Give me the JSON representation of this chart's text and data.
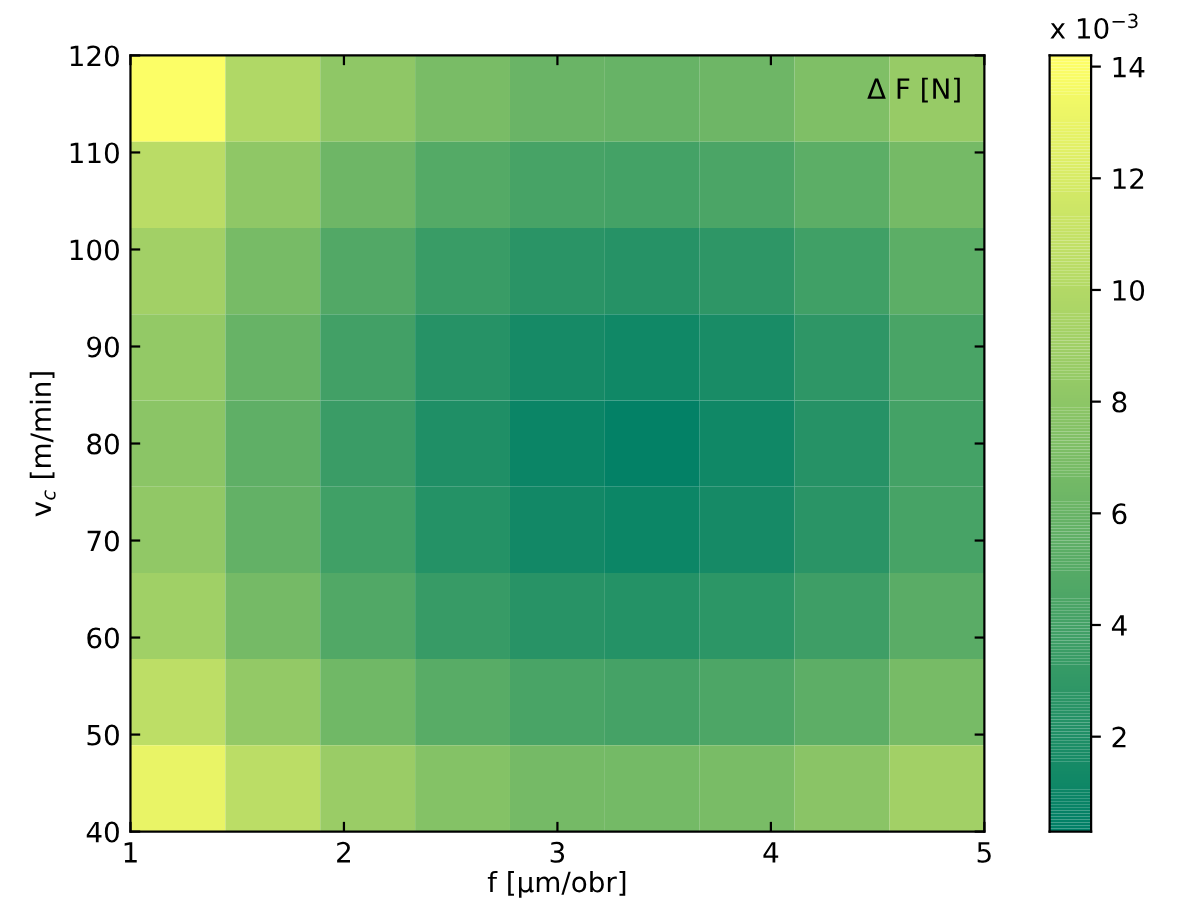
{
  "chart_data": {
    "type": "heatmap",
    "xlabel": "f [μm/obr]",
    "ylabel": "v$_{c}$ [m/min]",
    "clabel": "x 10$^{−3}$",
    "legend_title": "Δ F [N]",
    "xlim": [
      1,
      5
    ],
    "xticks": [
      1,
      2,
      3,
      4,
      5
    ],
    "ylim": [
      40,
      120
    ],
    "yticks": [
      40,
      50,
      60,
      70,
      80,
      90,
      100,
      110,
      120
    ],
    "cells": [
      [
        14.0,
        9.9,
        8.1,
        6.9,
        6.1,
        5.9,
        6.3,
        7.2,
        8.5
      ],
      [
        10.4,
        8.1,
        6.3,
        4.9,
        4.2,
        4.0,
        4.4,
        5.3,
        6.7
      ],
      [
        9.1,
        6.8,
        4.8,
        3.4,
        2.6,
        2.4,
        2.8,
        3.8,
        5.3
      ],
      [
        8.3,
        5.9,
        3.9,
        2.4,
        1.5,
        1.2,
        1.7,
        2.8,
        4.3
      ],
      [
        7.9,
        5.5,
        3.5,
        2.0,
        0.9,
        0.5,
        1.2,
        2.4,
        4.0
      ],
      [
        8.2,
        5.7,
        3.8,
        2.3,
        1.3,
        1.0,
        1.5,
        2.6,
        4.2
      ],
      [
        9.0,
        6.7,
        4.7,
        3.3,
        2.5,
        2.3,
        2.7,
        3.7,
        5.2
      ],
      [
        10.6,
        8.3,
        6.4,
        5.1,
        4.3,
        4.1,
        4.5,
        5.4,
        6.8
      ],
      [
        13.0,
        10.5,
        8.7,
        7.5,
        6.7,
        6.6,
        6.9,
        7.8,
        9.1
      ]
    ],
    "clim": [
      0.3,
      14.2
    ],
    "cticks": [
      2,
      4,
      6,
      8,
      10,
      12,
      14
    ]
  }
}
